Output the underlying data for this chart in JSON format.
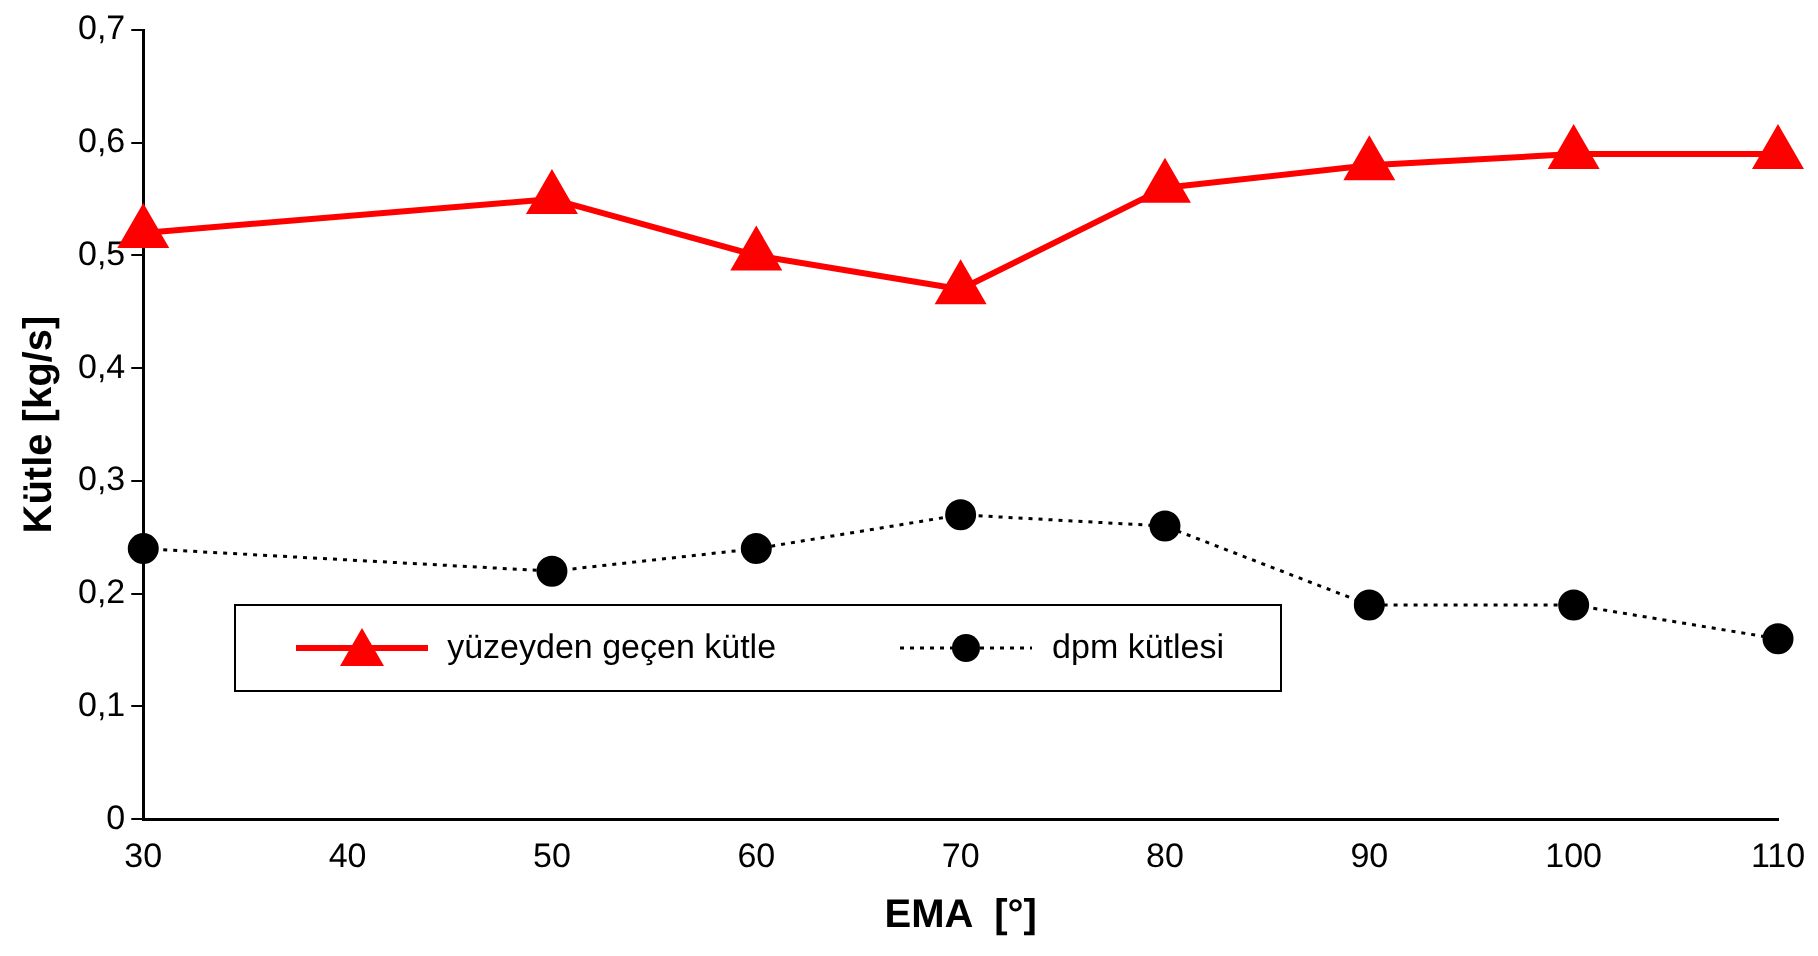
{
  "chart_data": {
    "type": "line",
    "xlabel": "EMA  [°]",
    "ylabel": "Kütle [kg/s]",
    "x": [
      30,
      50,
      60,
      70,
      80,
      90,
      100,
      110
    ],
    "series": [
      {
        "name": "yüzeyden geçen kütle",
        "color": "#ff0000",
        "marker": "triangle",
        "line_style": "solid",
        "values": [
          0.52,
          0.55,
          0.5,
          0.47,
          0.56,
          0.58,
          0.59,
          0.59
        ]
      },
      {
        "name": "dpm kütlesi",
        "color": "#000000",
        "marker": "circle",
        "line_style": "dotted",
        "values": [
          0.24,
          0.22,
          0.24,
          0.27,
          0.26,
          0.19,
          0.19,
          0.16
        ]
      }
    ],
    "xlim": [
      30,
      110
    ],
    "xticks": [
      30,
      40,
      50,
      60,
      70,
      80,
      90,
      100,
      110
    ],
    "ylim": [
      0,
      0.7
    ],
    "yticks": [
      0,
      {
        "value": 0.1,
        "label": "0,1"
      },
      {
        "value": 0.2,
        "label": "0,2"
      },
      {
        "value": 0.3,
        "label": "0,3"
      },
      {
        "value": 0.4,
        "label": "0,4"
      },
      {
        "value": 0.5,
        "label": "0,5"
      },
      {
        "value": 0.6,
        "label": "0,6"
      },
      {
        "value": 0.7,
        "label": "0,7"
      }
    ],
    "grid": false,
    "legend": "bottom left"
  }
}
